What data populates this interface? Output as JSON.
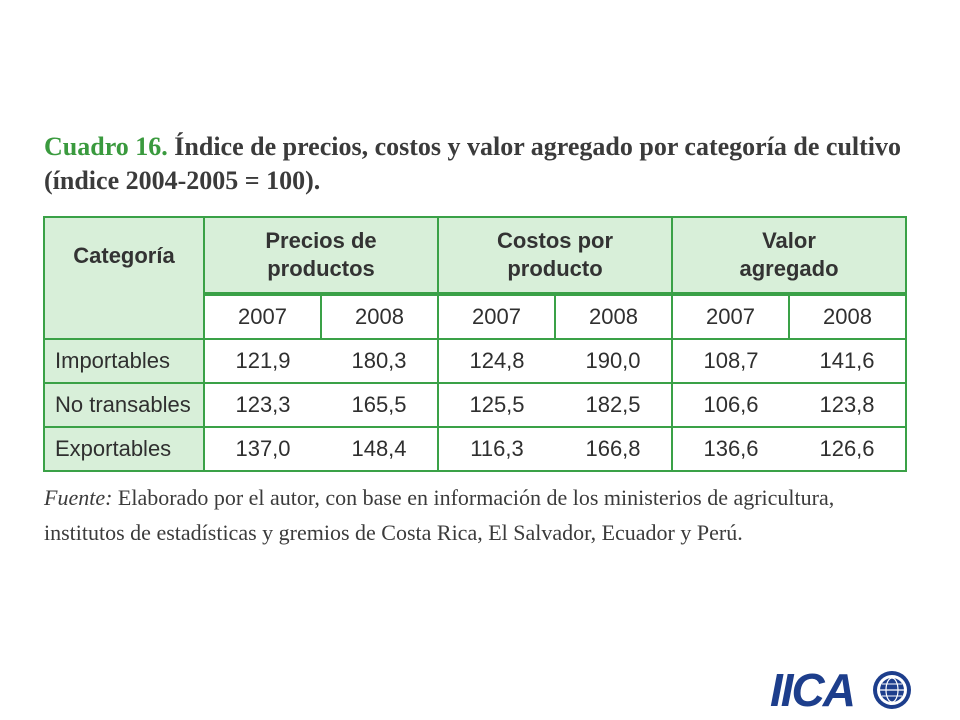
{
  "title": {
    "lead": "Cuadro 16.",
    "rest": "Índice de precios, costos y valor agregado por categoría de cultivo (índice 2004-2005 = 100)."
  },
  "table": {
    "category_header": "Categoría",
    "groups": [
      {
        "line1": "Precios de",
        "line2": "productos"
      },
      {
        "line1": "Costos por",
        "line2": "producto"
      },
      {
        "line1": "Valor",
        "line2": "agregado"
      }
    ],
    "years": [
      "2007",
      "2008",
      "2007",
      "2008",
      "2007",
      "2008"
    ],
    "rows": [
      {
        "category": "Importables",
        "values": [
          "121,9",
          "180,3",
          "124,8",
          "190,0",
          "108,7",
          "141,6"
        ]
      },
      {
        "category": "No transables",
        "values": [
          "123,3",
          "165,5",
          "125,5",
          "182,5",
          "106,6",
          "123,8"
        ]
      },
      {
        "category": "Exportables",
        "values": [
          "137,0",
          "148,4",
          "116,3",
          "166,8",
          "136,6",
          "126,6"
        ]
      }
    ]
  },
  "source": {
    "label": "Fuente:",
    "text": "Elaborado por el autor, con base en información de los ministerios de agricultura, institutos de estadísticas y gremios de Costa Rica, El Salvador, Ecuador y Perú."
  },
  "logo": {
    "text": "IICA",
    "color": "#1d3e8c"
  }
}
